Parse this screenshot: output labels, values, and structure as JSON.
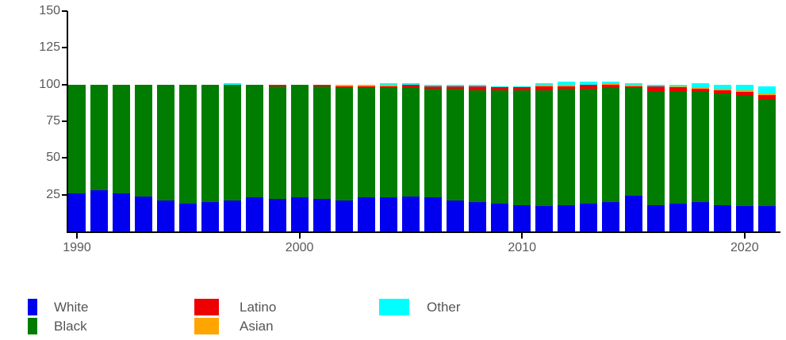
{
  "chart_data": {
    "type": "bar",
    "stacked": true,
    "title": "",
    "xlabel": "",
    "ylabel": "",
    "ylim": [
      0,
      150
    ],
    "y_ticks": [
      25,
      50,
      75,
      100,
      125,
      150
    ],
    "x_tick_labels": [
      "1990",
      "2000",
      "2010",
      "2020"
    ],
    "x_tick_indices": [
      0,
      10,
      20,
      30
    ],
    "grid": false,
    "legend_position": "bottom",
    "categories": [
      1990,
      1991,
      1992,
      1993,
      1994,
      1995,
      1996,
      1997,
      1998,
      1999,
      2000,
      2001,
      2002,
      2003,
      2004,
      2005,
      2006,
      2007,
      2008,
      2009,
      2010,
      2011,
      2012,
      2013,
      2014,
      2015,
      2016,
      2017,
      2018,
      2019,
      2020,
      2021
    ],
    "series": [
      {
        "name": "White",
        "color": "#0000ee",
        "values": [
          26,
          28,
          26,
          24,
          21,
          19,
          20,
          21,
          23,
          22,
          23,
          22,
          21,
          23,
          23,
          24,
          23,
          21,
          20,
          19,
          18,
          17,
          18,
          19,
          20,
          24,
          18,
          19,
          20,
          18,
          17,
          17
        ]
      },
      {
        "name": "Black",
        "color": "#007d00",
        "values": [
          74,
          72,
          74,
          76,
          79,
          81,
          80,
          79,
          77,
          77,
          77,
          77,
          77,
          75,
          75,
          74,
          74,
          76,
          76,
          77,
          78,
          79,
          79,
          78,
          78,
          74,
          77,
          76,
          75,
          76,
          75,
          73
        ]
      },
      {
        "name": "Latino",
        "color": "#ee0000",
        "values": [
          0,
          0,
          0,
          0,
          0,
          0,
          0,
          0,
          0,
          1,
          0,
          1,
          1,
          1,
          1,
          2,
          2,
          2,
          3,
          2,
          2,
          3,
          2,
          3,
          2,
          1,
          4,
          3,
          2,
          2,
          3,
          3
        ]
      },
      {
        "name": "Asian",
        "color": "#ffa500",
        "values": [
          0,
          0,
          0,
          0,
          0,
          0,
          0,
          0,
          0,
          0,
          0,
          0,
          1,
          1,
          1,
          0,
          0,
          0,
          0,
          0,
          0,
          1,
          1,
          0,
          1,
          1,
          0,
          1,
          1,
          1,
          1,
          1
        ]
      },
      {
        "name": "Other",
        "color": "#00ffff",
        "values": [
          0,
          0,
          0,
          0,
          0,
          0,
          0,
          1,
          0,
          0,
          0,
          0,
          0,
          0,
          1,
          1,
          1,
          1,
          1,
          1,
          1,
          1,
          2,
          2,
          1,
          1,
          1,
          1,
          3,
          3,
          4,
          5
        ]
      }
    ]
  },
  "legend": {
    "columns": [
      [
        {
          "label": "White",
          "color": "#0000ee"
        },
        {
          "label": "Black",
          "color": "#007d00"
        }
      ],
      [
        {
          "label": "Latino",
          "color": "#ee0000"
        },
        {
          "label": "Asian",
          "color": "#ffa500"
        }
      ],
      [
        {
          "label": "Other",
          "color": "#00ffff"
        }
      ]
    ]
  },
  "axis": {
    "line_color": "#000000",
    "tick_label_color": "#595959"
  }
}
